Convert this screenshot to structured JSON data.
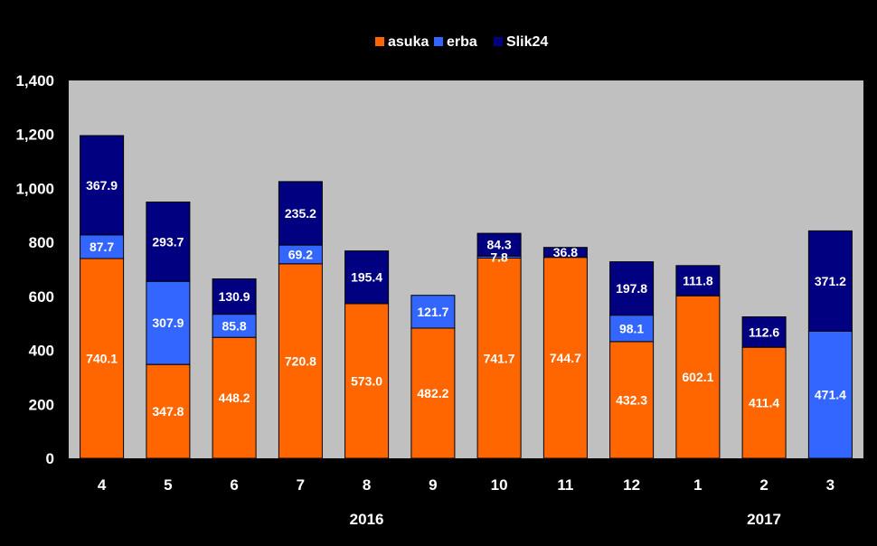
{
  "chart_data": {
    "type": "bar",
    "stacked": true,
    "categories": [
      "4",
      "5",
      "6",
      "7",
      "8",
      "9",
      "10",
      "11",
      "12",
      "1",
      "2",
      "3"
    ],
    "group_labels": [
      {
        "label": "2016",
        "category": "8"
      },
      {
        "label": "2017",
        "category": "2"
      }
    ],
    "series": [
      {
        "name": "asuka",
        "color": "#FF6600",
        "values": [
          740.1,
          347.8,
          448.2,
          720.8,
          573.0,
          482.2,
          741.7,
          744.7,
          432.3,
          602.1,
          411.4,
          0
        ],
        "labels": [
          "740.1",
          "347.8",
          "448.2",
          "720.8",
          "573.0",
          "482.2",
          "741.7",
          "744.7",
          "432.3",
          "602.1",
          "411.4",
          ""
        ]
      },
      {
        "name": "erba",
        "color": "#3366FF",
        "values": [
          87.7,
          307.9,
          85.8,
          69.2,
          0,
          121.7,
          7.8,
          0,
          98.1,
          0,
          0,
          471.4
        ],
        "labels": [
          "87.7",
          "307.9",
          "85.8",
          "69.2",
          "",
          "121.7",
          "7.8",
          "",
          "98.1",
          "",
          "",
          "471.4"
        ]
      },
      {
        "name": "Slik24",
        "color": "#000080",
        "values": [
          367.9,
          293.7,
          130.9,
          235.2,
          195.4,
          0,
          84.3,
          36.8,
          197.8,
          111.8,
          112.6,
          371.2
        ],
        "labels": [
          "367.9",
          "293.7",
          "130.9",
          "235.2",
          "195.4",
          "",
          "84.3",
          "36.8",
          "197.8",
          "111.8",
          "112.6",
          "371.2"
        ]
      }
    ],
    "ylim": [
      0,
      1400
    ],
    "yticks": [
      "0",
      "200",
      "400",
      "600",
      "800",
      "1,000",
      "1,200",
      "1,400"
    ],
    "ytick_values": [
      0,
      200,
      400,
      600,
      800,
      1000,
      1200,
      1400
    ],
    "legend_position": "top-center",
    "plot_background": "#C0C0C0",
    "figure_background": "#000000",
    "grid": false
  }
}
